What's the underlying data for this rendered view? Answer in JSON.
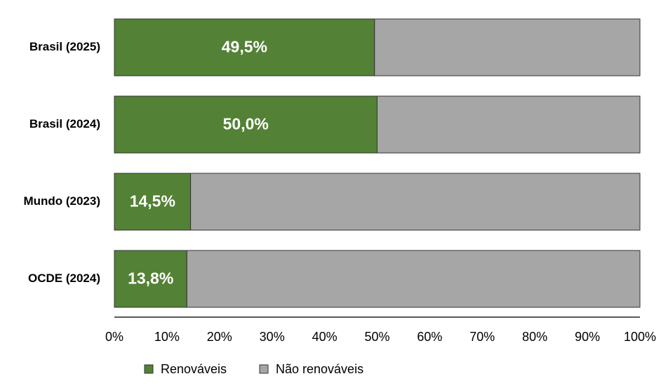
{
  "chart_data": {
    "type": "stacked-barh",
    "categories": [
      "Brasil (2025)",
      "Brasil (2024)",
      "Mundo (2023)",
      "OCDE (2024)"
    ],
    "series": [
      {
        "name": "Renováveis",
        "color": "#538135",
        "values": [
          49.5,
          50.0,
          14.5,
          13.8
        ],
        "value_labels": [
          "49,5%",
          "50,0%",
          "14,5%",
          "13,8%"
        ]
      },
      {
        "name": "Não renováveis",
        "color": "#a6a6a6",
        "values": [
          50.5,
          50.0,
          85.5,
          86.2
        ]
      }
    ],
    "xlim": [
      0,
      100
    ],
    "xticks": [
      {
        "value": 0,
        "label": "0%"
      },
      {
        "value": 10,
        "label": "10%"
      },
      {
        "value": 20,
        "label": "20%"
      },
      {
        "value": 30,
        "label": "30%"
      },
      {
        "value": 40,
        "label": "40%"
      },
      {
        "value": 50,
        "label": "50%"
      },
      {
        "value": 60,
        "label": "60%"
      },
      {
        "value": 70,
        "label": "70%"
      },
      {
        "value": 80,
        "label": "80%"
      },
      {
        "value": 90,
        "label": "90%"
      },
      {
        "value": 100,
        "label": "100%"
      }
    ],
    "legend": "bottom"
  }
}
